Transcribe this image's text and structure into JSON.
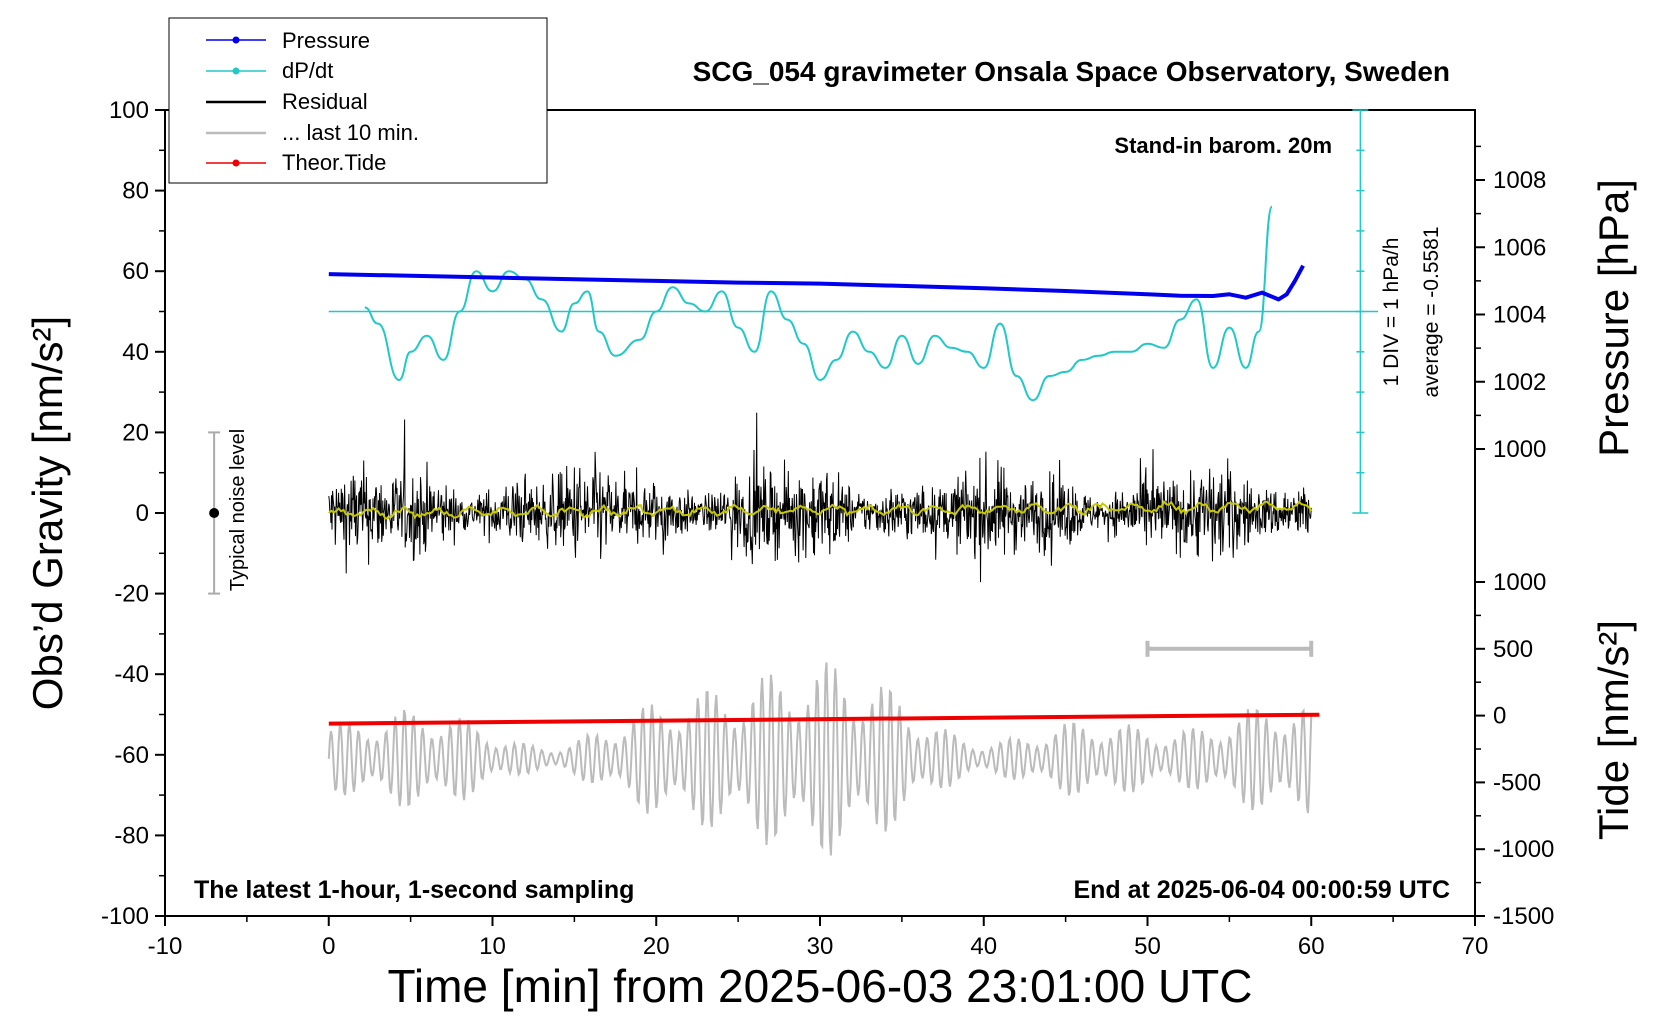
{
  "chart_data": {
    "type": "line",
    "title": "SCG_054 gravimeter Onsala Space Observatory, Sweden",
    "xlabel": "Time [min] from 2025-06-03 23:01:00 UTC",
    "ylabel_left": "Obs’d Gravity [nm/s²]",
    "ylabel_right_top": "Pressure [hPa]",
    "ylabel_right_bottom": "Tide [nm/s²]",
    "xlim": [
      -10,
      70
    ],
    "ylim_left": [
      -100,
      100
    ],
    "x_ticks": [
      "-10",
      "0",
      "10",
      "20",
      "30",
      "40",
      "50",
      "60",
      "70"
    ],
    "y_ticks_left": [
      "100",
      "80",
      "60",
      "40",
      "20",
      "0",
      "-20",
      "-40",
      "-60",
      "-80",
      "-100"
    ],
    "pressure_ticks": [
      "1008",
      "1006",
      "1004",
      "1002",
      "1000"
    ],
    "tide_ticks": [
      "1000",
      "500",
      "0",
      "-500",
      "-1000",
      "-1500"
    ],
    "annotations": {
      "barom": "Stand-in barom. 20m",
      "div": "1 DIV = 1 hPa/h",
      "average": "average = -0.5581",
      "noise": "Typical noise level",
      "latest": "The latest 1-hour, 1-second sampling",
      "end": "End at 2025-06-04 00:00:59 UTC"
    },
    "legend": {
      "position": "top-left",
      "entries": [
        "Pressure",
        "dP/dt",
        "Residual",
        "... last 10 min.",
        "Theor.Tide"
      ]
    },
    "colors": {
      "pressure": "#0000ee",
      "dpdt": "#20c8c8",
      "residual": "#000000",
      "residual_mean": "#c8c800",
      "last10": "#bbbbbb",
      "tide": "#ee0000"
    },
    "series": [
      {
        "name": "Pressure",
        "unit": "hPa",
        "x": [
          0,
          5,
          10,
          15,
          20,
          25,
          30,
          35,
          40,
          45,
          50,
          52,
          54,
          55,
          56,
          57,
          58,
          58.5,
          59,
          59.5
        ],
        "values": [
          1005.2,
          1005.15,
          1005.1,
          1005.05,
          1005.0,
          1004.95,
          1004.92,
          1004.85,
          1004.78,
          1004.7,
          1004.6,
          1004.56,
          1004.55,
          1004.6,
          1004.5,
          1004.65,
          1004.45,
          1004.6,
          1005.0,
          1005.45
        ]
      },
      {
        "name": "dP/dt",
        "unit": "nm/s² (plotted)",
        "x": [
          2.2,
          3,
          4.3,
          5,
          6,
          7,
          8,
          9,
          10,
          11,
          12,
          13,
          14.2,
          15,
          15.8,
          16.5,
          17.5,
          19,
          20,
          21,
          22,
          23,
          24,
          25,
          26,
          27,
          28,
          29,
          30,
          31,
          32,
          33,
          34,
          35,
          36,
          37,
          38,
          39,
          40,
          41,
          42,
          43,
          44,
          45,
          46,
          47,
          48,
          49,
          50,
          51,
          52,
          53,
          54,
          55,
          56,
          56.8,
          57.6
        ],
        "values": [
          51,
          47,
          33,
          40,
          44,
          38,
          50,
          60,
          55,
          60,
          58,
          53,
          45,
          52,
          55,
          45,
          39,
          43,
          50,
          56,
          52,
          50,
          55,
          46,
          40,
          55,
          48,
          42,
          33,
          38,
          45,
          40,
          36,
          44,
          37,
          44,
          41,
          40,
          36,
          47,
          34,
          28,
          34,
          35,
          38,
          39,
          40,
          40,
          42,
          41,
          48,
          53,
          36,
          46,
          36,
          45,
          76
        ]
      },
      {
        "name": "Residual",
        "unit": "nm/s²",
        "x_range": [
          0,
          60
        ],
        "y_range": [
          -31,
          28
        ]
      },
      {
        "name": "... last 10 min.",
        "unit": "nm/s² (plotted)",
        "x_range": [
          0,
          60
        ],
        "y_range": [
          -85,
          -37
        ]
      },
      {
        "name": "Theor.Tide",
        "unit": "nm/s²",
        "x": [
          0,
          60.5
        ],
        "values": [
          -60,
          7
        ]
      }
    ],
    "last10_bar": {
      "x": [
        50,
        60
      ],
      "tide_value": 500
    }
  }
}
